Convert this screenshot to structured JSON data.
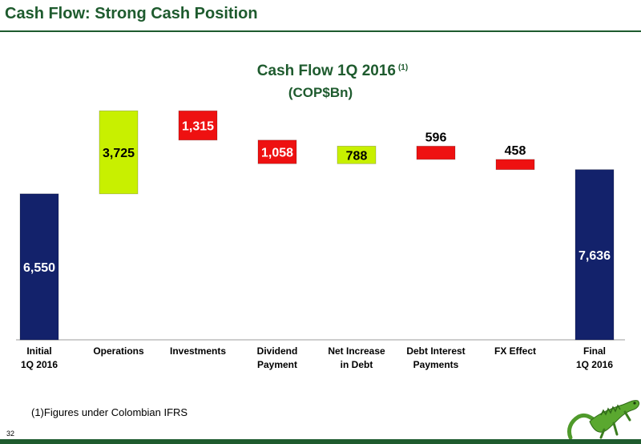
{
  "slide": {
    "title": "Cash Flow: Strong Cash Position",
    "footnote": "(1)Figures under Colombian IFRS",
    "page_number": "32"
  },
  "chart_data": {
    "type": "waterfall",
    "title": "Cash Flow 1Q 2016",
    "title_note": "(1)",
    "subtitle": "(COP$Bn)",
    "categories": [
      [
        "Initial",
        "1Q 2016"
      ],
      [
        "Operations"
      ],
      [
        "Investments"
      ],
      [
        "Dividend",
        "Payment"
      ],
      [
        "Net Increase",
        "in Debt"
      ],
      [
        "Debt Interest",
        "Payments"
      ],
      [
        "FX Effect"
      ],
      [
        "Final",
        "1Q 2016"
      ]
    ],
    "values": [
      6550,
      3725,
      -1315,
      -1058,
      788,
      -596,
      -458,
      7636
    ],
    "labels": [
      "6,550",
      "3,725",
      "1,315",
      "1,058",
      "788",
      "596",
      "458",
      "7,636"
    ],
    "kinds": [
      "total",
      "increase",
      "decrease",
      "decrease",
      "increase",
      "decrease",
      "decrease",
      "total"
    ],
    "colors": {
      "total": "#13226b",
      "increase": "#c8f000",
      "decrease": "#ee1111",
      "axis": "#bdbdbd",
      "label_on_total": "#ffffff",
      "label_dark": "#000000",
      "label_on_decrease": "#ffffff"
    },
    "ylim": [
      0,
      10500
    ],
    "grid": false,
    "legend": "none"
  }
}
